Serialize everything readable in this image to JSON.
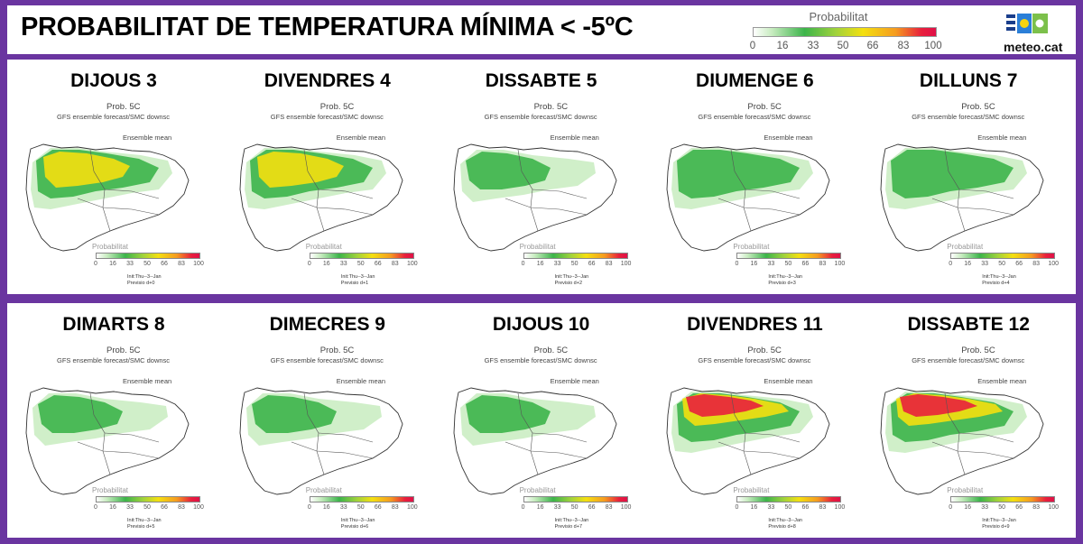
{
  "header": {
    "title": "PROBABILITAT DE TEMPERATURA MÍNIMA < -5ºC",
    "legend_label": "Probabilitat",
    "legend_ticks": [
      "0",
      "16",
      "33",
      "50",
      "66",
      "83",
      "100"
    ],
    "logo_text": "meteo.cat",
    "logo_icon": "meteocat-logo-icon"
  },
  "map_text": {
    "prob_title": "Prob. 5C",
    "subtitle": "GFS ensemble forecast/SMC downsc",
    "ensemble": "Ensemble mean",
    "legend_label": "Probabilitat",
    "init": "Init:Thu--3--Jan"
  },
  "colors": {
    "frame": "#6a35a0",
    "low": "#c8ecc0",
    "mid": "#3cb44a",
    "high": "#f4e010",
    "max": "#e8203c"
  },
  "panels": [
    {
      "day": "DIJOUS 3",
      "prev": "Previsio d+0",
      "level": "high"
    },
    {
      "day": "DIVENDRES 4",
      "prev": "Previsio d+1",
      "level": "high"
    },
    {
      "day": "DISSABTE 5",
      "prev": "Previsio d+2",
      "level": "low"
    },
    {
      "day": "DIUMENGE 6",
      "prev": "Previsio d+3",
      "level": "mid"
    },
    {
      "day": "DILLUNS 7",
      "prev": "Previsio d+4",
      "level": "mid"
    },
    {
      "day": "DIMARTS 8",
      "prev": "Previsio d+5",
      "level": "low"
    },
    {
      "day": "DIMECRES 9",
      "prev": "Previsio d+6",
      "level": "low"
    },
    {
      "day": "DIJOUS 10",
      "prev": "Previsio d+7",
      "level": "low"
    },
    {
      "day": "DIVENDRES 11",
      "prev": "Previsio d+8",
      "level": "max"
    },
    {
      "day": "DISSABTE 12",
      "prev": "Previsio d+9",
      "level": "max"
    }
  ]
}
